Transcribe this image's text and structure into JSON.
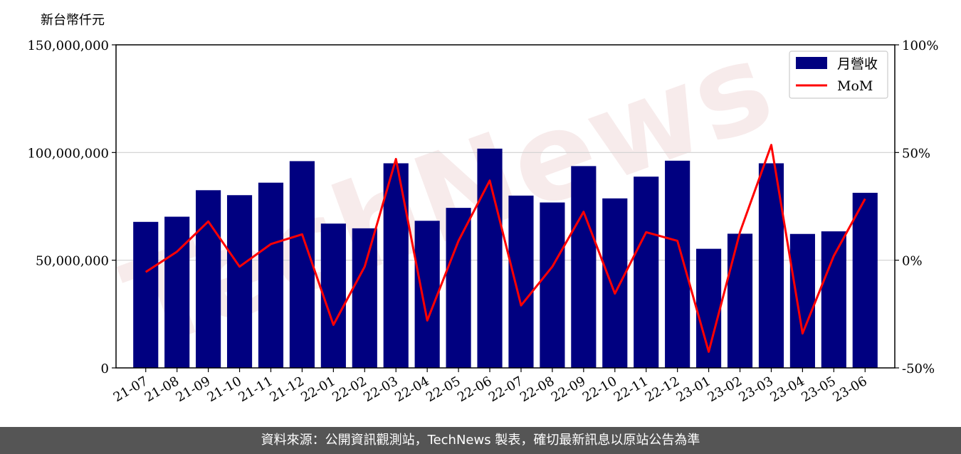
{
  "chart_data": {
    "type": "bar",
    "y_unit_label": "新台幣仟元",
    "categories": [
      "21-07",
      "21-08",
      "21-09",
      "21-10",
      "21-11",
      "21-12",
      "22-01",
      "22-02",
      "22-03",
      "22-04",
      "22-05",
      "22-06",
      "22-07",
      "22-08",
      "22-09",
      "22-10",
      "22-11",
      "22-12",
      "23-01",
      "23-02",
      "23-03",
      "23-04",
      "23-05",
      "23-06"
    ],
    "series": [
      {
        "name": "月營收",
        "type": "bar",
        "axis": "left",
        "color": "#000080",
        "values": [
          67800000,
          70200000,
          82500000,
          80200000,
          86000000,
          96000000,
          67000000,
          64800000,
          95000000,
          68300000,
          74300000,
          101800000,
          80000000,
          76800000,
          93700000,
          78700000,
          88800000,
          96200000,
          55300000,
          62300000,
          95000000,
          62200000,
          63400000,
          81300000
        ]
      },
      {
        "name": "MoM",
        "type": "line",
        "axis": "right",
        "color": "#ff0000",
        "values": [
          -5.5,
          4,
          18,
          -3,
          7.5,
          12,
          -30,
          -3,
          47,
          -28,
          9,
          37,
          -21,
          -3,
          22.5,
          -15.5,
          13,
          9,
          -42.5,
          13,
          53.5,
          -34,
          2,
          28.5
        ]
      }
    ],
    "y_left": {
      "min": 0,
      "max": 150000000,
      "ticks": [
        0,
        50000000,
        100000000,
        150000000
      ],
      "tick_labels": [
        "0",
        "50,000,000",
        "100,000,000",
        "150,000,000"
      ]
    },
    "y_right": {
      "min": -50,
      "max": 100,
      "ticks": [
        -50,
        0,
        50,
        100
      ],
      "tick_labels": [
        "-50%",
        "0%",
        "50%",
        "100%"
      ]
    },
    "grid": "horizontal",
    "legend": "top-right"
  },
  "watermark": "TechNews",
  "footer": {
    "text": "資料來源：公開資訊觀測站，TechNews 製表，確切最新訊息以原站公告為準"
  }
}
